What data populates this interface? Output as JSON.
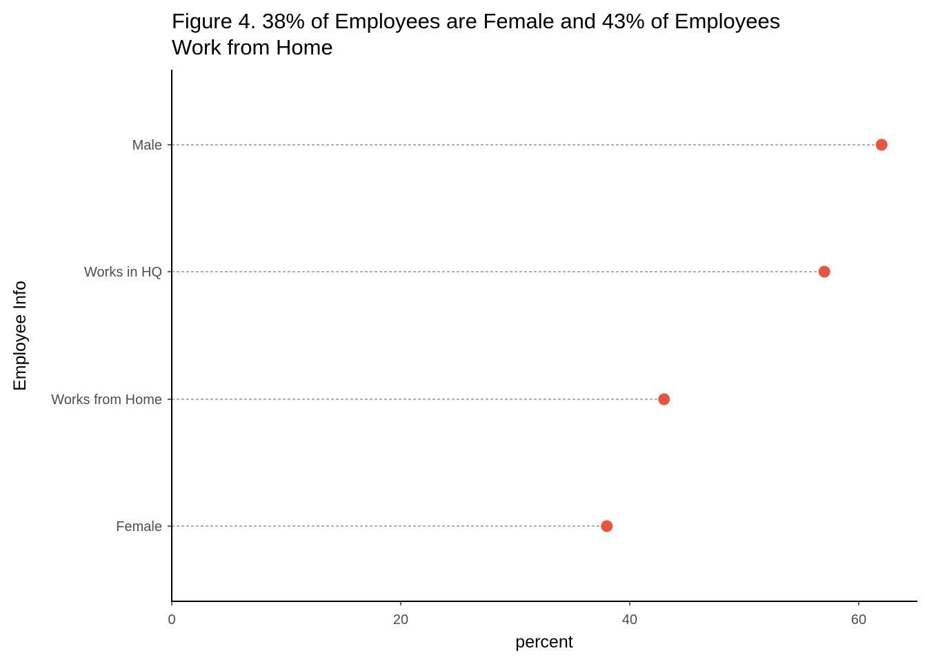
{
  "chart_data": {
    "type": "scatter",
    "title_line1": "Figure 4. 38% of Employees are Female and 43% of Employees",
    "title_line2": "Work from Home",
    "xlabel": "percent",
    "ylabel": "Employee Info",
    "xlim": [
      0,
      65
    ],
    "x_ticks": [
      0,
      20,
      40,
      60
    ],
    "grid": false,
    "legend": "none",
    "point_color": "#e8553e",
    "categories": [
      "Male",
      "Works in HQ",
      "Works from Home",
      "Female"
    ],
    "values": [
      62,
      57,
      43,
      38
    ]
  }
}
